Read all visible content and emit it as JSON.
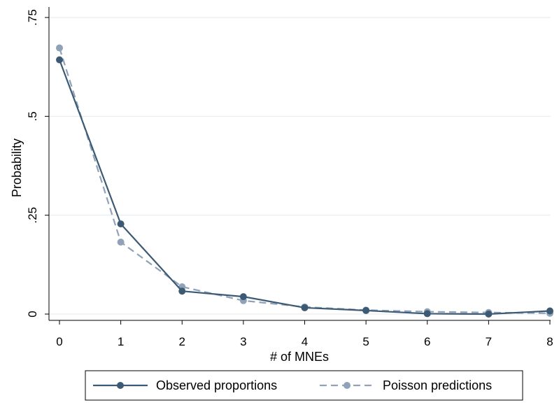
{
  "chart_data": {
    "type": "line",
    "title": "",
    "xlabel": "# of MNEs",
    "ylabel": "Probability",
    "x": [
      0,
      1,
      2,
      3,
      4,
      5,
      6,
      7,
      8
    ],
    "xlim": [
      0,
      8
    ],
    "ylim": [
      0,
      0.75
    ],
    "x_ticks": [
      "0",
      "1",
      "2",
      "3",
      "4",
      "5",
      "6",
      "7",
      "8"
    ],
    "y_ticks": [
      {
        "value": 0,
        "label": "0"
      },
      {
        "value": 0.25,
        "label": ".25"
      },
      {
        "value": 0.5,
        "label": ".5"
      },
      {
        "value": 0.75,
        "label": ".75"
      }
    ],
    "grid": "horizontal",
    "legend_position": "bottom",
    "series": [
      {
        "name": "Observed proportions",
        "values": [
          0.643,
          0.228,
          0.058,
          0.044,
          0.016,
          0.009,
          0.001,
          0.0,
          0.008
        ],
        "color": "#3d5a75",
        "dashed": false
      },
      {
        "name": "Poisson predictions",
        "values": [
          0.673,
          0.182,
          0.069,
          0.034,
          0.018,
          0.01,
          0.006,
          0.004,
          0.002
        ],
        "color": "#8fa2b7",
        "dashed": true
      }
    ]
  }
}
